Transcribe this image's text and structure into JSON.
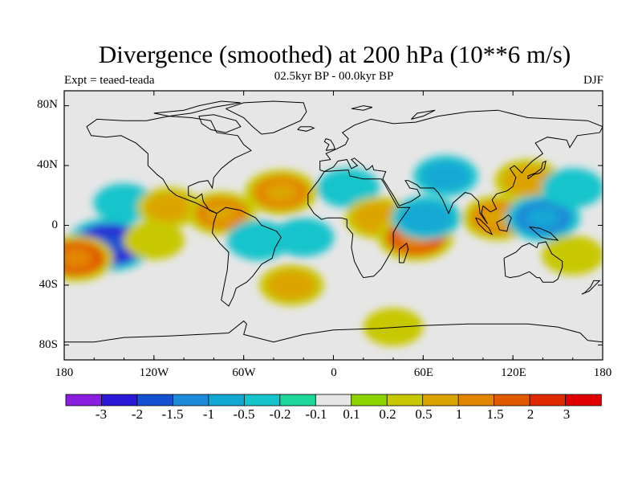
{
  "title": "Divergence (smoothed) at 200 hPa (10**6 m/s)",
  "experiment_label": "Expt = teaed-teada",
  "period_label": "02.5kyr BP - 00.0kyr BP",
  "season_label": "DJF",
  "y_ticks": [
    "80N",
    "40N",
    "0",
    "40S",
    "80S"
  ],
  "x_ticks": [
    "180",
    "120W",
    "60W",
    "0",
    "60E",
    "120E",
    "180"
  ],
  "colorbar": {
    "labels": [
      "-3",
      "-2",
      "-1.5",
      "-1",
      "-0.5",
      "-0.2",
      "-0.1",
      "0.1",
      "0.2",
      "0.5",
      "1",
      "1.5",
      "2",
      "3"
    ],
    "colors": [
      "#8c1ee0",
      "#2a18d6",
      "#1450d2",
      "#1c8ad8",
      "#12a8d4",
      "#14c4cc",
      "#1cd69a",
      "#e6e6e6",
      "#8ed400",
      "#c8c800",
      "#dca400",
      "#e28600",
      "#e25a00",
      "#e02a00",
      "#e00000"
    ]
  },
  "chart_data": {
    "type": "heatmap",
    "title": "Divergence (smoothed) at 200 hPa (10**6 m/s)",
    "experiment": "Expt = teaed-teada",
    "period": "02.5kyr BP - 00.0kyr BP",
    "season": "DJF",
    "xlim": [
      -180,
      180
    ],
    "ylim": [
      -90,
      90
    ],
    "contour_levels": [
      -3,
      -2,
      -1.5,
      -1,
      -0.5,
      -0.2,
      -0.1,
      0.1,
      0.2,
      0.5,
      1,
      1.5,
      2,
      3
    ],
    "features": [
      {
        "lon": -150,
        "lat": -13,
        "value": -2.5
      },
      {
        "lon": -172,
        "lat": -22,
        "value": 1.5
      },
      {
        "lon": -120,
        "lat": -10,
        "value": 0.3
      },
      {
        "lon": -140,
        "lat": 15,
        "value": -0.3
      },
      {
        "lon": -110,
        "lat": 12,
        "value": 0.5
      },
      {
        "lon": -75,
        "lat": 8,
        "value": 1.0
      },
      {
        "lon": -35,
        "lat": 22,
        "value": 1.3
      },
      {
        "lon": -50,
        "lat": -10,
        "value": -0.5
      },
      {
        "lon": -20,
        "lat": -8,
        "value": -0.3
      },
      {
        "lon": -28,
        "lat": -40,
        "value": 0.6
      },
      {
        "lon": 10,
        "lat": 25,
        "value": -0.4
      },
      {
        "lon": 30,
        "lat": 5,
        "value": 0.8
      },
      {
        "lon": 55,
        "lat": -8,
        "value": 1.6
      },
      {
        "lon": 62,
        "lat": 5,
        "value": -1.0
      },
      {
        "lon": 75,
        "lat": 33,
        "value": -0.6
      },
      {
        "lon": 110,
        "lat": 5,
        "value": 1.2
      },
      {
        "lon": 130,
        "lat": 30,
        "value": 0.8
      },
      {
        "lon": 140,
        "lat": 5,
        "value": -1.5
      },
      {
        "lon": 160,
        "lat": 25,
        "value": -0.4
      },
      {
        "lon": 160,
        "lat": -20,
        "value": 0.4
      },
      {
        "lon": 40,
        "lat": -68,
        "value": 0.2
      }
    ]
  }
}
